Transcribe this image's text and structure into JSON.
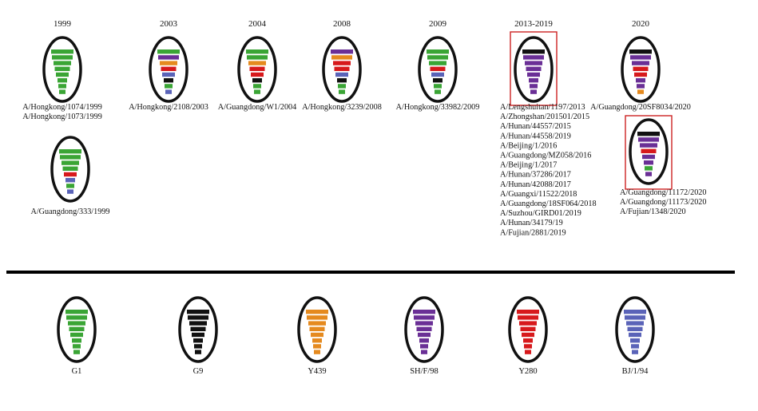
{
  "colors": {
    "G1": "#3aa535",
    "G9": "#111111",
    "Y439": "#e58a1f",
    "SH_F98": "#6a2f96",
    "Y280": "#d7191c",
    "BJ_1_94": "#5a63b8",
    "highlight_box": "#cc2222",
    "outline": "#111111"
  },
  "top_row": [
    {
      "year": "1999",
      "highlighted": false,
      "segments": [
        "G1",
        "G1",
        "G1",
        "G1",
        "G1",
        "G1",
        "G1",
        "G1"
      ],
      "strains": [
        "A/Hongkong/1074/1999",
        "A/Hongkong/1073/1999"
      ]
    },
    {
      "year": "2003",
      "highlighted": false,
      "segments": [
        "G1",
        "SH_F98",
        "Y439",
        "Y280",
        "BJ_1_94",
        "G9",
        "G1",
        "BJ_1_94"
      ],
      "strains": [
        "A/Hongkong/2108/2003"
      ]
    },
    {
      "year": "2004",
      "highlighted": false,
      "segments": [
        "G1",
        "G1",
        "Y439",
        "Y280",
        "Y280",
        "G9",
        "G1",
        "G1"
      ],
      "strains": [
        "A/Guangdong/W1/2004"
      ]
    },
    {
      "year": "2008",
      "highlighted": false,
      "segments": [
        "SH_F98",
        "Y439",
        "Y280",
        "Y280",
        "BJ_1_94",
        "G9",
        "G1",
        "G1"
      ],
      "strains": [
        "A/Hongkong/3239/2008"
      ]
    },
    {
      "year": "2009",
      "highlighted": false,
      "segments": [
        "G1",
        "G1",
        "G1",
        "Y280",
        "BJ_1_94",
        "G9",
        "G1",
        "G1"
      ],
      "strains": [
        "A/Hongkong/33982/2009"
      ]
    },
    {
      "year": "2013-2019",
      "highlighted": true,
      "segments": [
        "G9",
        "SH_F98",
        "SH_F98",
        "SH_F98",
        "SH_F98",
        "SH_F98",
        "SH_F98",
        "SH_F98"
      ],
      "strains": [
        "A/Lengshuitan/1197/2013",
        "A/Zhongshan/201501/2015",
        "A/Hunan/44557/2015",
        "A/Hunan/44558/2019",
        "A/Beijing/1/2016",
        "A/Guangdong/MZ058/2016",
        "A/Beijing/1/2017",
        "A/Hunan/37286/2017",
        "A/Hunan/42088/2017",
        "A/Guangxi/11522/2018",
        "A/Guangdong/18SF064/2018",
        "A/Suzhou/GIRD01/2019",
        "A/Hunan/34179/19",
        "A/Fujian/2881/2019"
      ]
    },
    {
      "year": "2020",
      "highlighted": false,
      "segments": [
        "G9",
        "SH_F98",
        "SH_F98",
        "Y280",
        "Y280",
        "SH_F98",
        "SH_F98",
        "Y439"
      ],
      "strains": [
        "A/Guangdong/20SF8034/2020"
      ]
    }
  ],
  "second_row": [
    {
      "highlighted": false,
      "segments": [
        "G1",
        "G1",
        "G1",
        "G1",
        "Y280",
        "BJ_1_94",
        "G1",
        "BJ_1_94"
      ],
      "strains": [
        "A/Guangdong/333/1999"
      ]
    },
    {
      "highlighted": true,
      "segments": [
        "G9",
        "SH_F98",
        "SH_F98",
        "Y280",
        "SH_F98",
        "SH_F98",
        "G1",
        "SH_F98"
      ],
      "strains": [
        "A/Guangdong/11172/2020",
        "A/Guangdong/11173/2020",
        "A/Fujian/1348/2020"
      ]
    }
  ],
  "legend": [
    {
      "key": "G1",
      "label": "G1"
    },
    {
      "key": "G9",
      "label": "G9"
    },
    {
      "key": "Y439",
      "label": "Y439"
    },
    {
      "key": "SH_F98",
      "label": "SH/F/98"
    },
    {
      "key": "Y280",
      "label": "Y280"
    },
    {
      "key": "BJ_1_94",
      "label": "BJ/1/94"
    }
  ]
}
